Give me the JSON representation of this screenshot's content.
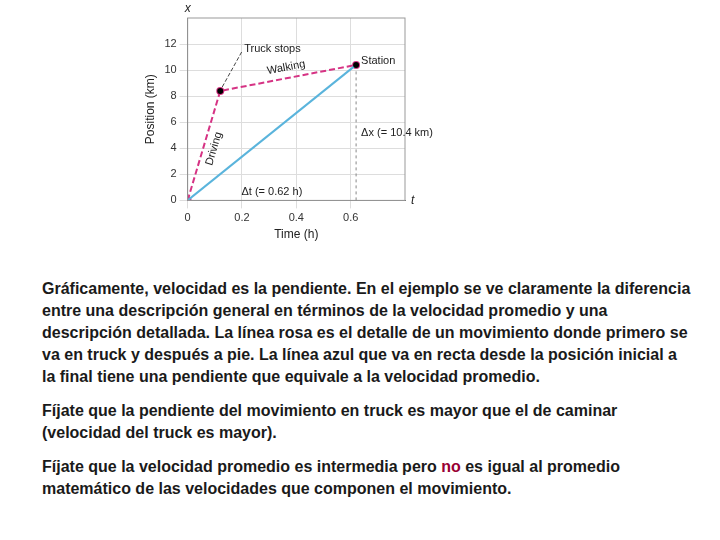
{
  "chart_data": {
    "type": "line",
    "xlabel": "Time (h)",
    "ylabel": "Position (km)",
    "x_axis_symbol": "t",
    "y_axis_symbol": "x",
    "xlim": [
      0,
      0.8
    ],
    "xticks": [
      0,
      0.2,
      0.4,
      0.6
    ],
    "ylim": [
      0,
      14
    ],
    "yticks": [
      0,
      2,
      4,
      6,
      8,
      10,
      12
    ],
    "grid": true,
    "series": [
      {
        "x": [
          0,
          0.12,
          0.62
        ],
        "values": [
          0,
          8.4,
          10.4
        ],
        "color": "#d63384",
        "marker": "circle",
        "line_style": "dashed",
        "point_labels": [
          null,
          "Truck stops",
          "Station"
        ],
        "segment_labels": [
          "Driving",
          "Walking"
        ]
      },
      {
        "x": [
          0,
          0.62
        ],
        "values": [
          0,
          10.4
        ],
        "color": "#5ab4dc",
        "marker": "none",
        "line_style": "solid"
      }
    ],
    "annotations": [
      {
        "type": "delta_x",
        "label": "Δx (= 10.4 km)",
        "x": 0.62,
        "value": 10.4
      },
      {
        "type": "delta_t",
        "label": "Δt (= 0.62 h)",
        "value": 0.62
      }
    ]
  },
  "text": {
    "paragraphs": [
      [
        {
          "text": "Gráficamente, velocidad es la pendiente.  En el ejemplo se ve claramente la diferencia entre una descripción general en términos de la velocidad promedio y una descripción detallada.  La línea rosa es el detalle de un movimiento donde primero se va en truck y después a pie.  La línea azul que va en recta desde la posición inicial a la final tiene una pendiente que equivale a la velocidad promedio."
        }
      ],
      [
        {
          "text": "Fíjate que la pendiente del movimiento en truck es mayor que el de caminar (velocidad del truck es mayor)."
        }
      ],
      [
        {
          "text": "Fíjate que la velocidad promedio es intermedia pero "
        },
        {
          "text": "no",
          "color": "#990033"
        },
        {
          "text": " es igual al promedio matemático de las velocidades que componen el movimiento."
        }
      ]
    ]
  }
}
